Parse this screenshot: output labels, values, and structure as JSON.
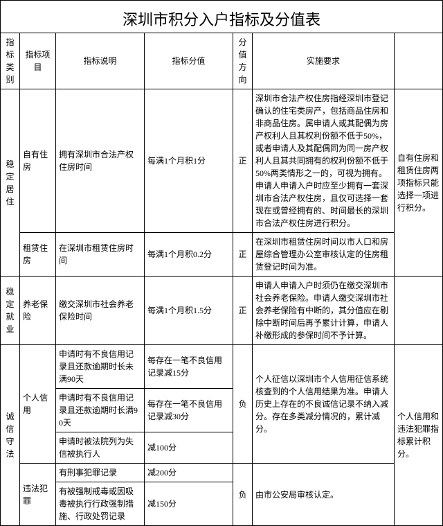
{
  "title": "深圳市积分入户指标及分值表",
  "headers": {
    "category": "指标类别",
    "item": "指标项目",
    "desc": "指标说明",
    "score": "指标分值",
    "direction": "分值方向",
    "requirement": "实施要求",
    "note": ""
  },
  "rows": {
    "r1": {
      "category": "稳定居住",
      "item": "自有住房",
      "desc": "拥有深圳市合法产权住房时间",
      "score": "每满1个月积1分",
      "direction": "正",
      "requirement": "深圳市合法产权住房指经深圳市登记确认的住宅类房产，包括商品住房和非商品住房。属申请人或其配偶为房产权利人且其权利份额不低于50%，或者申请人及其配偶同为同一房产权利人且其共同拥有的权利份额不低于50%两类情形之一的，可视为拥有。申请人申请入户时应至少拥有一套深圳市合法产权住房，且仅可选择一套现在或曾经拥有的、时间最长的深圳市合法产权住房进行积分。",
      "note": "自有住房和租赁住房两项指标只能选择一项进行积分。"
    },
    "r2": {
      "item": "租赁住房",
      "desc": "在深圳市租赁住房时间",
      "score": "每满1个月积0.2分",
      "direction": "正",
      "requirement": "在深圳市租赁住房时间以市人口和房屋综合管理办公室审核认定的住房租赁登记时间为准。"
    },
    "r3": {
      "category": "稳定就业",
      "item": "养老保险",
      "desc": "缴交深圳市社会养老保险时间",
      "score": "每满1个月积1.5分",
      "direction": "正",
      "requirement": "申请人申请入户时须仍在缴交深圳市社会养老保险。申请人缴交深圳市社会养老保险有中断的，其分值应在剔除中断时间后再予累计计算，申请人补缴形成的参保时间不予计算。"
    },
    "r4": {
      "category": "诚信守法",
      "item": "个人信用",
      "desc": "申请时有不良信用记录且还款逾期时长未满90天",
      "score": "每存在一笔不良信用记录减15分",
      "direction": "负",
      "requirement": "个人征信以深圳市个人信用征信系统核查到的个人信用结果为准。申请人历史上存在的不良诚信记录不纳入减分。存在多类减分情况的，累计减分。",
      "note": "个人信用和违法犯罪指标累计积分。"
    },
    "r5": {
      "desc": "申请时有不良信用记录且还款逾期时长满90天",
      "score": "每存在一笔不良信用记录减30分"
    },
    "r6": {
      "desc": "申请时被法院列为失信被执行人",
      "score": "减100分"
    },
    "r7": {
      "item": "违法犯罪",
      "desc": "有刑事犯罪记录",
      "score": "减200分",
      "direction": "负",
      "requirement": "由市公安局审核认定。"
    },
    "r8": {
      "desc": "有被强制戒毒或因吸毒被执行行政强制措施、行政处罚记录",
      "score": "减150分"
    }
  }
}
